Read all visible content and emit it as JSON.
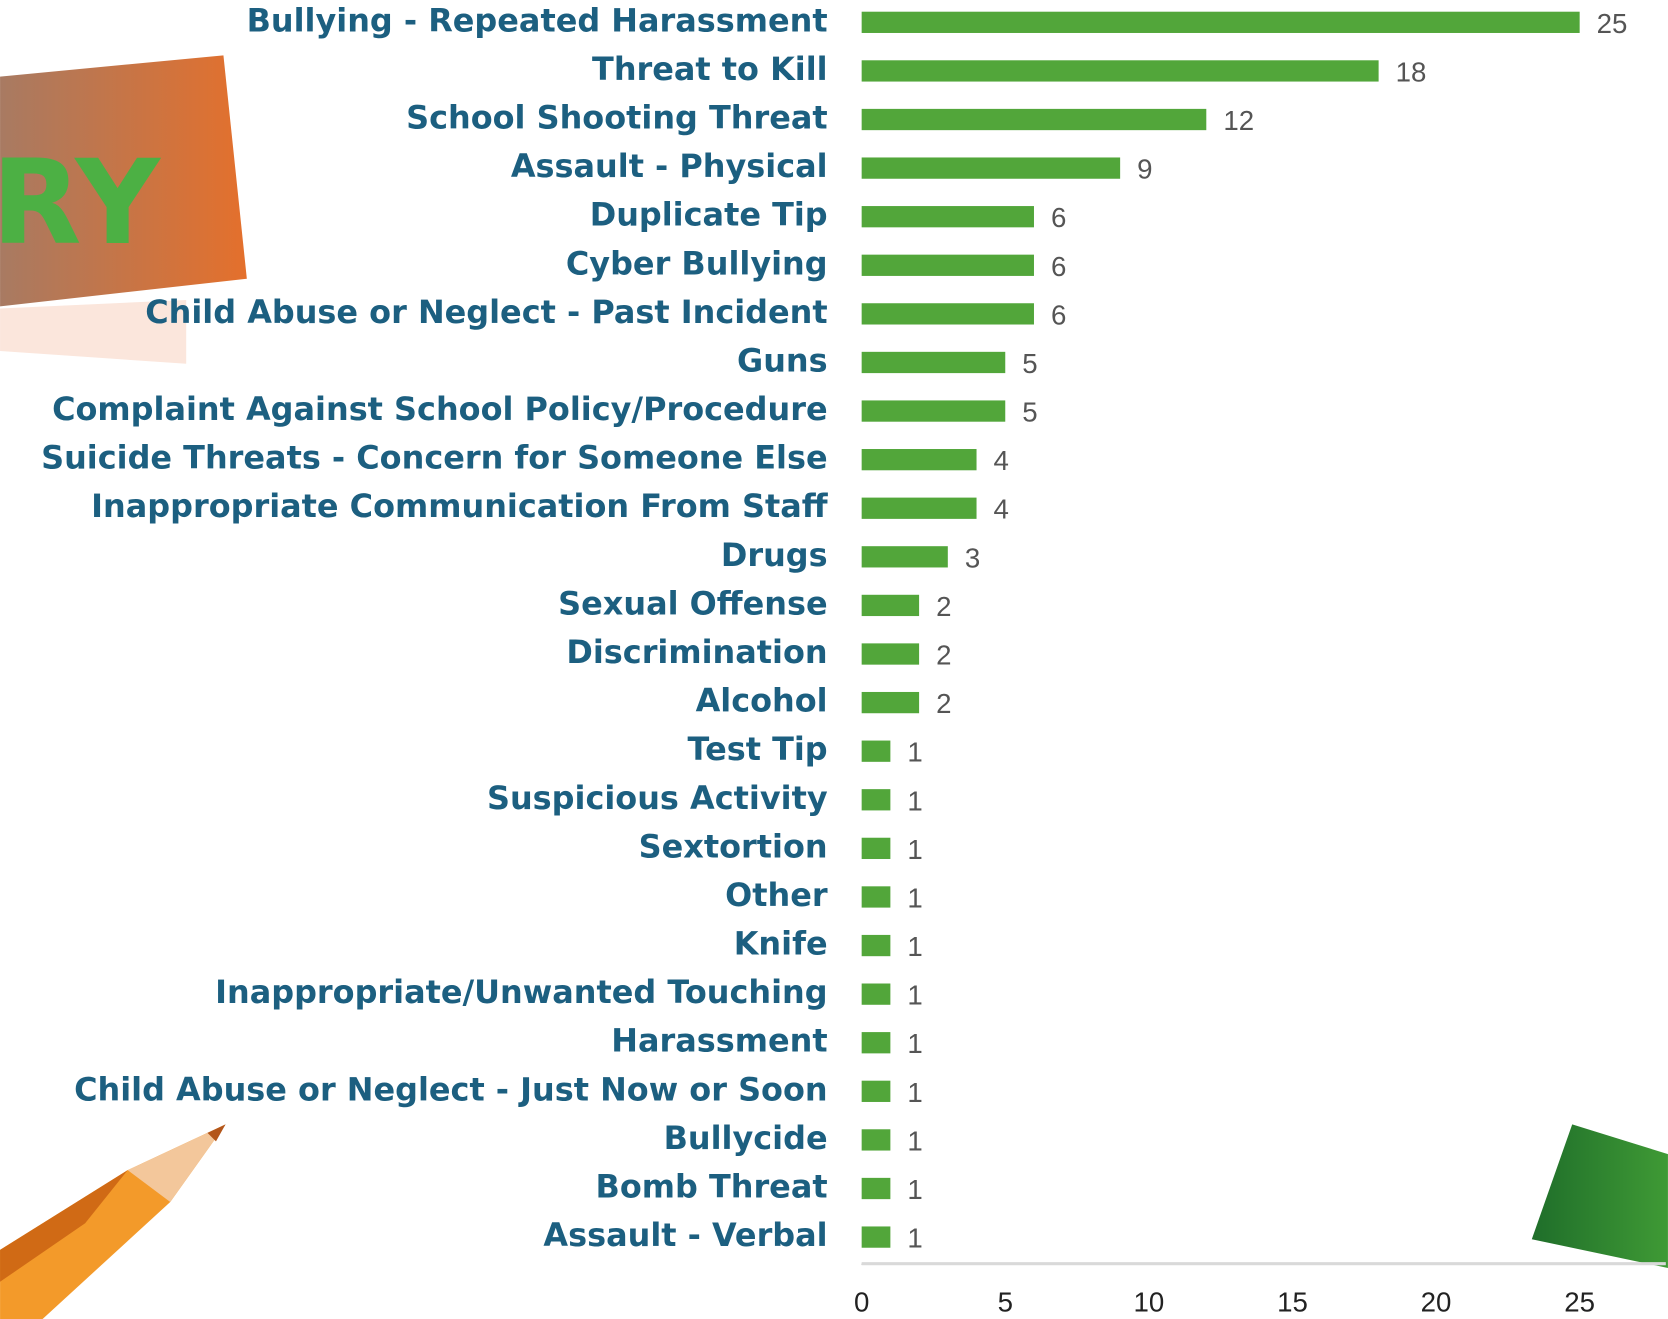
{
  "banner_text": "RY",
  "chart_data": {
    "type": "bar",
    "orientation": "horizontal",
    "color": "#52a63a",
    "categories": [
      "Bullying - Repeated Harassment",
      "Threat to Kill",
      "School Shooting Threat",
      "Assault - Physical",
      "Duplicate Tip",
      "Cyber Bullying",
      "Child Abuse or Neglect - Past Incident",
      "Guns",
      "Complaint Against School Policy/Procedure",
      "Suicide Threats - Concern for Someone Else",
      "Inappropriate Communication From Staff",
      "Drugs",
      "Sexual Offense",
      "Discrimination",
      "Alcohol",
      "Test Tip",
      "Suspicious Activity",
      "Sextortion",
      "Other",
      "Knife",
      "Inappropriate/Unwanted Touching",
      "Harassment",
      "Child Abuse or Neglect - Just Now or Soon",
      "Bullycide",
      "Bomb Threat",
      "Assault - Verbal"
    ],
    "values": [
      25,
      18,
      12,
      9,
      6,
      6,
      6,
      5,
      5,
      4,
      4,
      3,
      2,
      2,
      2,
      1,
      1,
      1,
      1,
      1,
      1,
      1,
      1,
      1,
      1,
      1
    ],
    "xlim": [
      0,
      28
    ],
    "xticks": [
      0,
      5,
      10,
      15,
      20,
      25
    ],
    "grid": false
  }
}
